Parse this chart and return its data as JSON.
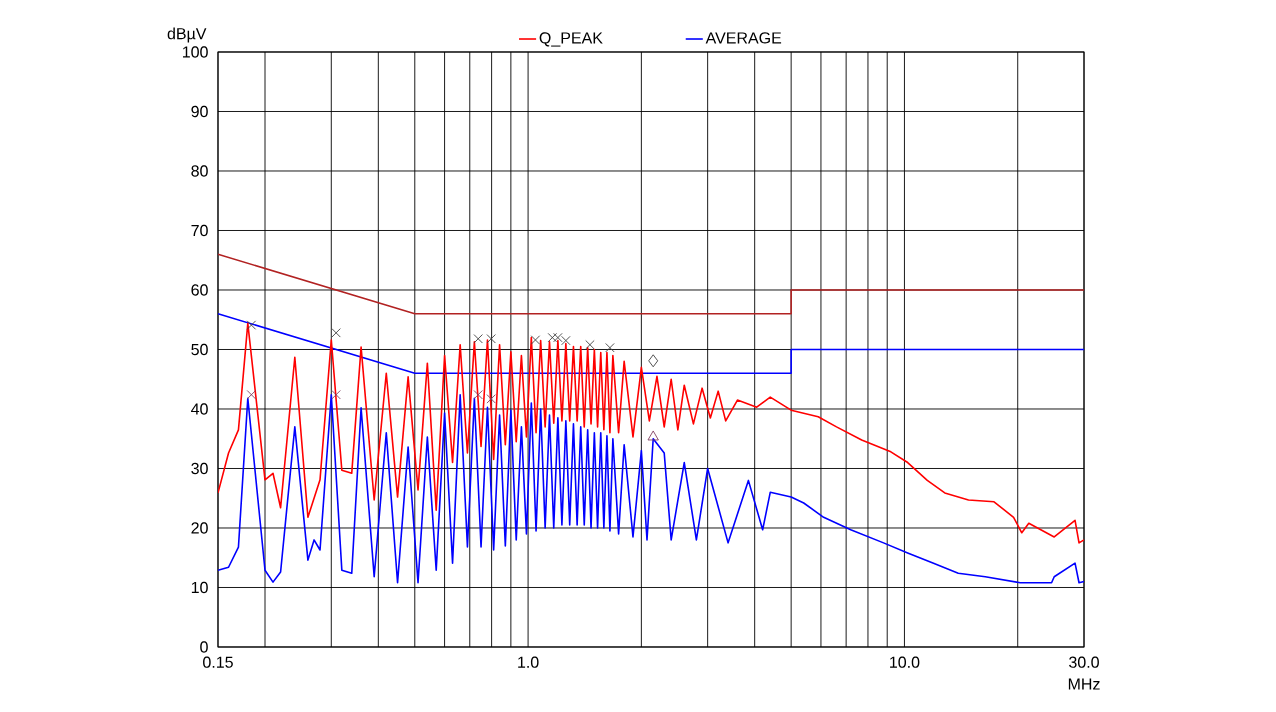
{
  "chart_data": {
    "type": "line",
    "xlabel": "MHz",
    "ylabel": "dBµV",
    "log": "x",
    "grid": true,
    "legend": "top",
    "marker": "none",
    "line_style": "solid",
    "xlim": [
      0.15,
      30
    ],
    "ylim": [
      0,
      100
    ],
    "xticks": [
      {
        "value": 0.15,
        "label": "0.15"
      },
      {
        "value": 0.2,
        "label": null
      },
      {
        "value": 0.3,
        "label": null
      },
      {
        "value": 0.4,
        "label": null
      },
      {
        "value": 0.5,
        "label": null
      },
      {
        "value": 0.6,
        "label": null
      },
      {
        "value": 0.7,
        "label": null
      },
      {
        "value": 0.8,
        "label": null
      },
      {
        "value": 0.9,
        "label": null
      },
      {
        "value": 1,
        "label": "1.0"
      },
      {
        "value": 2,
        "label": null
      },
      {
        "value": 3,
        "label": null
      },
      {
        "value": 4,
        "label": null
      },
      {
        "value": 5,
        "label": null
      },
      {
        "value": 6,
        "label": null
      },
      {
        "value": 7,
        "label": null
      },
      {
        "value": 8,
        "label": null
      },
      {
        "value": 9,
        "label": null
      },
      {
        "value": 10,
        "label": "10.0"
      },
      {
        "value": 20,
        "label": null
      },
      {
        "value": 30,
        "label": "30.0"
      }
    ],
    "yticks": [
      0,
      10,
      20,
      30,
      40,
      50,
      60,
      70,
      80,
      90,
      100
    ],
    "series": [
      {
        "color": "#b22222",
        "x": [
          0.15,
          0.5,
          5,
          5,
          30
        ],
        "values": [
          66,
          56,
          56,
          60,
          60
        ]
      },
      {
        "color": "#0000ff",
        "x": [
          0.15,
          0.5,
          5,
          5,
          30
        ],
        "values": [
          56,
          46,
          46,
          50,
          50
        ]
      },
      {
        "name": "Q_PEAK",
        "color": "#ff0000",
        "x": [
          0.15,
          0.16,
          0.17,
          0.18,
          0.2,
          0.21,
          0.22,
          0.24,
          0.26,
          0.28,
          0.3,
          0.32,
          0.34,
          0.36,
          0.39,
          0.42,
          0.45,
          0.48,
          0.51,
          0.54,
          0.57,
          0.6,
          0.63,
          0.66,
          0.69,
          0.72,
          0.75,
          0.78,
          0.81,
          0.84,
          0.87,
          0.9,
          0.93,
          0.96,
          0.99,
          1.02,
          1.05,
          1.08,
          1.11,
          1.14,
          1.17,
          1.2,
          1.23,
          1.26,
          1.29,
          1.32,
          1.35,
          1.38,
          1.41,
          1.44,
          1.47,
          1.5,
          1.53,
          1.56,
          1.59,
          1.62,
          1.65,
          1.68,
          1.74,
          1.8,
          1.9,
          2.0,
          2.1,
          2.2,
          2.3,
          2.4,
          2.5,
          2.6,
          2.75,
          2.9,
          3.05,
          3.2,
          3.35,
          3.6,
          4.05,
          4.4,
          5.0,
          5.9,
          6.6,
          7.7,
          9.2,
          10.2,
          11.5,
          12.8,
          14.8,
          17.3,
          19.5,
          20.5,
          21.4,
          25,
          28.4,
          29.1,
          30
        ],
        "values": [
          25.9,
          32.6,
          36.5,
          54.4,
          28.1,
          29.2,
          23.4,
          48.7,
          21.8,
          28.1,
          51.6,
          29.7,
          29.2,
          50.4,
          24.7,
          46,
          25.2,
          45.4,
          26.4,
          47.7,
          23,
          49,
          31,
          50.8,
          32.6,
          51.3,
          33.7,
          51.6,
          31.5,
          50.8,
          34,
          49.6,
          34.5,
          49,
          35.3,
          52,
          36,
          51.5,
          37,
          51.3,
          37.6,
          51.5,
          38,
          51,
          38,
          50.5,
          38,
          50.5,
          37,
          50.3,
          37.5,
          50,
          37,
          49.5,
          36.5,
          49.5,
          36,
          49,
          36,
          48,
          35.3,
          47,
          38,
          45.5,
          37,
          45,
          36.5,
          44,
          37.5,
          43.5,
          38.5,
          43,
          38,
          41.5,
          40.3,
          42,
          39.8,
          38.7,
          37,
          34.8,
          32.8,
          31,
          28,
          25.9,
          24.7,
          24.4,
          21.8,
          19.2,
          20.8,
          18.5,
          21.3,
          17.5,
          18
        ]
      },
      {
        "name": "AVERAGE",
        "color": "#0000ff",
        "x": [
          0.15,
          0.16,
          0.17,
          0.18,
          0.2,
          0.21,
          0.22,
          0.24,
          0.26,
          0.27,
          0.28,
          0.3,
          0.32,
          0.34,
          0.36,
          0.39,
          0.42,
          0.45,
          0.48,
          0.51,
          0.54,
          0.57,
          0.6,
          0.63,
          0.66,
          0.69,
          0.72,
          0.75,
          0.78,
          0.81,
          0.84,
          0.87,
          0.9,
          0.93,
          0.96,
          0.99,
          1.02,
          1.05,
          1.08,
          1.11,
          1.14,
          1.17,
          1.2,
          1.23,
          1.26,
          1.29,
          1.32,
          1.35,
          1.38,
          1.41,
          1.44,
          1.47,
          1.5,
          1.53,
          1.56,
          1.59,
          1.62,
          1.65,
          1.68,
          1.74,
          1.8,
          1.9,
          2.0,
          2.07,
          2.15,
          2.3,
          2.4,
          2.6,
          2.8,
          3.0,
          3.4,
          3.85,
          4.2,
          4.4,
          5.0,
          5.4,
          6.1,
          7.2,
          8.8,
          10.2,
          11.9,
          13.9,
          16.4,
          20.3,
          24.6,
          25,
          28.4,
          29.1,
          30
        ],
        "values": [
          12.9,
          13.4,
          16.8,
          41.8,
          12.9,
          10.9,
          12.6,
          37,
          14.6,
          18,
          16.3,
          42.4,
          12.9,
          12.4,
          40.2,
          11.8,
          36,
          10.8,
          33.6,
          10.8,
          35.3,
          12.9,
          39.3,
          14.1,
          42.4,
          16.8,
          41.8,
          16.8,
          40.3,
          16.3,
          39,
          17,
          39.8,
          18,
          37,
          19,
          41,
          19.5,
          40,
          20,
          39,
          20,
          38.5,
          20.5,
          38,
          20.5,
          37.5,
          20.5,
          37,
          20.5,
          36.5,
          20,
          36,
          20,
          36,
          20,
          35.5,
          19.5,
          35,
          19,
          34,
          18.5,
          33,
          18,
          35,
          32.6,
          18,
          31,
          18,
          30,
          17.5,
          28,
          19.7,
          26,
          25.2,
          24.2,
          21.8,
          19.7,
          17.5,
          15.8,
          14.1,
          12.4,
          11.8,
          10.8,
          10.8,
          11.8,
          14.1,
          10.8,
          11
        ]
      },
      {
        "type": "scatter",
        "marker": "cross",
        "color": "#404040",
        "x": [
          0.184,
          0.309,
          0.737,
          0.798,
          1.046,
          1.16,
          1.2,
          1.26,
          1.46,
          1.65
        ],
        "values": [
          54.1,
          52.8,
          51.8,
          51.8,
          51.6,
          52,
          52,
          51.5,
          50.8,
          50.3
        ]
      },
      {
        "type": "scatter",
        "marker": "diamond",
        "color": "#404040",
        "x": [
          2.15
        ],
        "values": [
          48.1
        ]
      },
      {
        "type": "scatter",
        "marker": "cross",
        "color": "#804060",
        "x": [
          0.184,
          0.309,
          0.737,
          0.798
        ],
        "values": [
          42.4,
          42.4,
          42.4,
          41.7
        ]
      },
      {
        "type": "scatter",
        "marker": "triangle",
        "color": "#804060",
        "x": [
          2.15
        ],
        "values": [
          35.3
        ]
      }
    ]
  }
}
